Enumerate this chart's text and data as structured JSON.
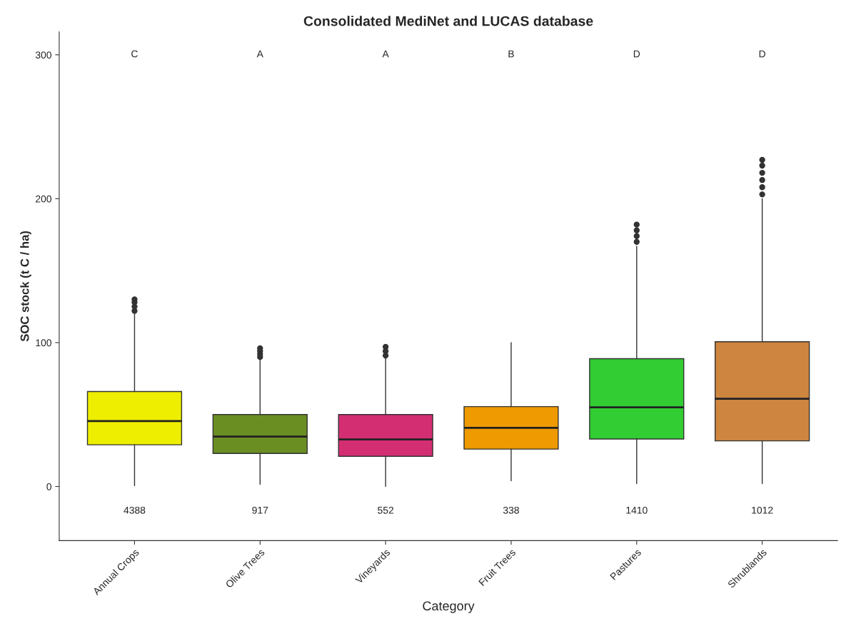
{
  "chart_data": {
    "type": "box",
    "title": "Consolidated MediNet and LUCAS database",
    "xlabel": "Category",
    "ylabel": "SOC stock (t C / ha)",
    "categories": [
      "Annual Crops",
      "Olive Trees",
      "Vineyards",
      "Fruit Trees",
      "Pastures",
      "Shrublands"
    ],
    "colors": [
      "#eeee00",
      "#6b8e23",
      "#d42e72",
      "#ee9a00",
      "#32cd32",
      "#cd853f"
    ],
    "boxes": [
      {
        "low": 0.5,
        "q1": 29,
        "median": 45.5,
        "q3": 66,
        "high": 120,
        "outliers": [
          122,
          125,
          128,
          130
        ]
      },
      {
        "low": 1.5,
        "q1": 23,
        "median": 34.7,
        "q3": 50,
        "high": 88,
        "outliers": [
          90,
          92,
          94,
          96
        ]
      },
      {
        "low": 0,
        "q1": 21,
        "median": 32.7,
        "q3": 50,
        "high": 89,
        "outliers": [
          91,
          94,
          97
        ]
      },
      {
        "low": 4,
        "q1": 26,
        "median": 40.8,
        "q3": 55.5,
        "high": 100
      },
      {
        "low": 2,
        "q1": 33,
        "median": 55,
        "q3": 88.8,
        "high": 167,
        "outliers": [
          170,
          174,
          178,
          182
        ]
      },
      {
        "low": 2,
        "q1": 31.7,
        "median": 61,
        "q3": 100.6,
        "high": 200,
        "outliers": [
          203,
          208,
          213,
          218,
          223,
          227
        ]
      }
    ],
    "ylim": [
      -37.6,
      316
    ],
    "yticks": [
      0,
      100,
      200,
      300
    ],
    "grid": false,
    "legend": false,
    "annotations": [
      "C",
      "A",
      "A",
      "B",
      "D",
      "D",
      "4388",
      "917",
      "552",
      "338",
      "1410",
      "1012"
    ]
  }
}
